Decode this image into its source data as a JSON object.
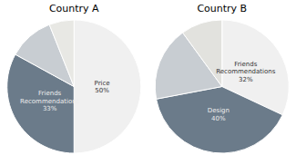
{
  "chart_data": [
    {
      "type": "pie",
      "title": "Country A",
      "categories": [
        "Price",
        "Friends\nRecommendations",
        null,
        null
      ],
      "values": [
        50,
        33,
        11,
        6
      ],
      "value_labels": [
        "50%",
        "33%",
        null,
        null
      ],
      "data_labels": true,
      "colors": [
        "#f0f0f0",
        "#6b7b8a",
        "#c8cdd2",
        "#e8e8e4"
      ]
    },
    {
      "type": "pie",
      "title": "Country B",
      "categories": [
        "Friends\nRecommendations",
        "Design",
        null,
        null
      ],
      "values": [
        32,
        40,
        18,
        10
      ],
      "value_labels": [
        "32%",
        "40%",
        null,
        null
      ],
      "data_labels": true,
      "colors": [
        "#f0f0f0",
        "#6b7b8a",
        "#c8cdd2",
        "#e2e2de"
      ]
    }
  ]
}
